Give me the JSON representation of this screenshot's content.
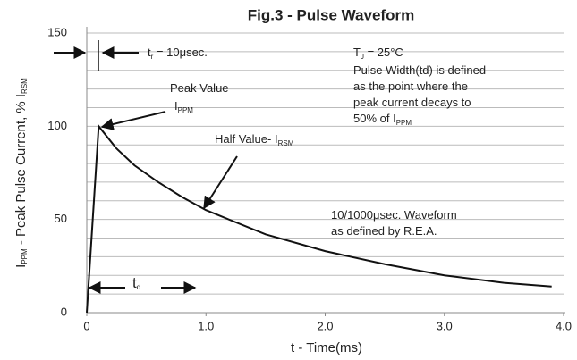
{
  "chart_data": {
    "type": "line",
    "title": "Fig.3 - Pulse Waveform",
    "xlabel": "t - Time(ms)",
    "ylabel": [
      {
        "text": "I"
      },
      {
        "text": "PPM",
        "sub": true
      },
      {
        "text": " - Peak Pulse Current, % I"
      },
      {
        "text": "RSM",
        "sub": true
      }
    ],
    "x": [
      0,
      0.1,
      0.25,
      0.4,
      0.6,
      0.8,
      1.0,
      1.5,
      2.0,
      2.5,
      3.0,
      3.5,
      3.9
    ],
    "values": [
      0,
      100,
      88,
      79,
      70,
      62,
      55,
      42,
      33,
      26,
      20,
      16,
      14
    ],
    "color": "#111111",
    "xlim": [
      0,
      4.0
    ],
    "ylim": [
      0,
      150
    ],
    "xticks": [
      0,
      {
        "value": 1.0,
        "label": "1.0"
      },
      {
        "value": 2.0,
        "label": "2.0"
      },
      {
        "value": 3.0,
        "label": "3.0"
      },
      {
        "value": 4.0,
        "label": "4.0"
      }
    ],
    "yticks": [
      0,
      50,
      100,
      150
    ],
    "minor_yticks": [
      10,
      20,
      30,
      40,
      60,
      70,
      80,
      90,
      110,
      120,
      130,
      140
    ],
    "grid": true,
    "annotations": [
      [
        {
          "text": "t"
        },
        {
          "text": "r",
          "sub": true
        },
        {
          "text": " = 10μsec."
        }
      ],
      [
        {
          "text": "T"
        },
        {
          "text": "J",
          "sub": true
        },
        {
          "text": " = 25°C"
        }
      ],
      [
        {
          "text": "Pulse Width(td) is defined"
        }
      ],
      [
        {
          "text": "as the point where the"
        }
      ],
      [
        {
          "text": "peak current decays to"
        }
      ],
      [
        {
          "text": "50% of I"
        },
        {
          "text": "PPM",
          "sub": true
        }
      ],
      [
        {
          "text": "Peak Value"
        }
      ],
      [
        {
          "text": "I"
        },
        {
          "text": "PPM",
          "sub": true
        }
      ],
      [
        {
          "text": "Half Value- I"
        },
        {
          "text": "RSM",
          "sub": true
        }
      ],
      [
        {
          "text": "10/1000μsec. Waveform"
        }
      ],
      [
        {
          "text": "as defined by R.E.A."
        }
      ],
      [
        {
          "text": "t"
        },
        {
          "text": "d",
          "sub": true
        }
      ]
    ]
  }
}
